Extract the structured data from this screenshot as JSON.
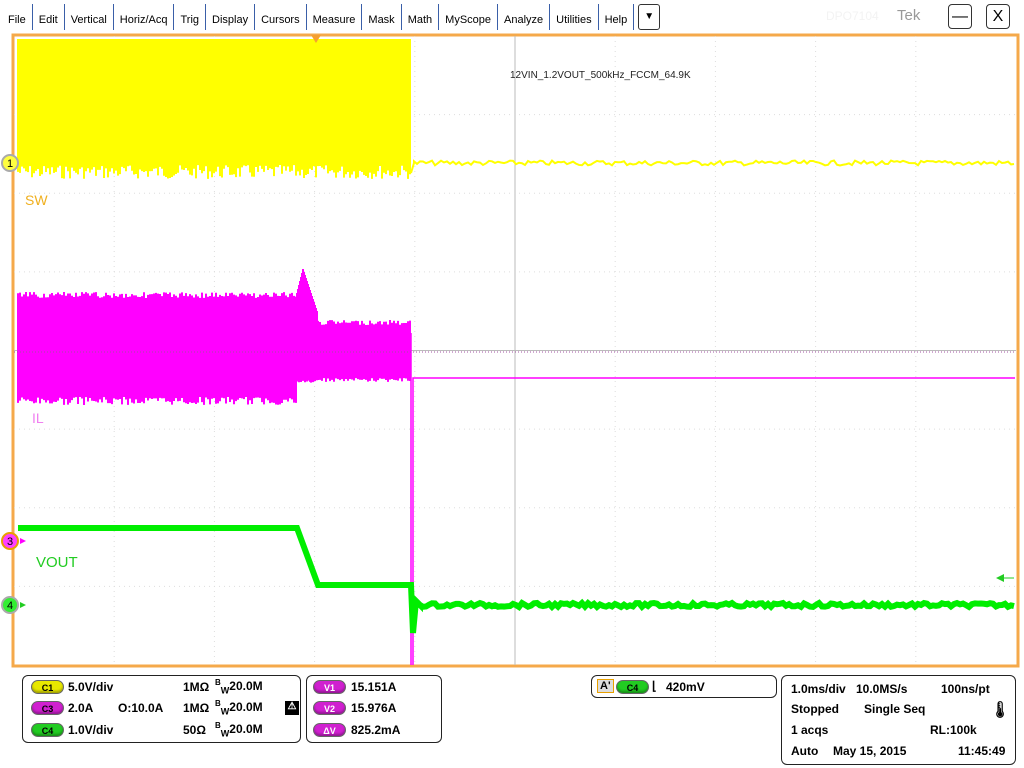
{
  "menu": [
    "File",
    "Edit",
    "Vertical",
    "Horiz/Acq",
    "Trig",
    "Display",
    "Cursors",
    "Measure",
    "Mask",
    "Math",
    "MyScope",
    "Analyze",
    "Utilities",
    "Help"
  ],
  "menu_more": "▼",
  "model": "DPO7104",
  "brand": "Tek",
  "window": {
    "minimize": "—",
    "close": "X"
  },
  "screen": {
    "annotation": "12VIN_1.2VOUT_500kHz_FCCM_64.9K",
    "labels": {
      "sw": "SW",
      "il": "IL",
      "vout": "VOUT"
    },
    "markers": {
      "c1": "1",
      "c3": "3",
      "c4": "4"
    },
    "colors": {
      "c1": "#ffff00",
      "c3": "#ff00ff",
      "c4": "#00ee00",
      "frame": "#f5a94a",
      "grid": "#cccccc"
    }
  },
  "channels": [
    {
      "id": "C1",
      "scale": "5.0V/div",
      "offset": "",
      "impedance": "1MΩ",
      "bw": "20.0M",
      "color": "#e8e800"
    },
    {
      "id": "C3",
      "scale": "2.0A",
      "offset": "O:10.0A",
      "impedance": "1MΩ",
      "bw": "20.0M",
      "color": "#d020d0"
    },
    {
      "id": "C4",
      "scale": "1.0V/div",
      "offset": "",
      "impedance": "50Ω",
      "bw": "20.0M",
      "color": "#22cc22"
    }
  ],
  "bw_prefix": "B",
  "bw_sub": "W",
  "cursors": [
    {
      "label": "V1",
      "value": "15.151A"
    },
    {
      "label": "V2",
      "value": "15.976A"
    },
    {
      "label": "ΔV",
      "value": "825.2mA"
    }
  ],
  "trigger": {
    "marker": "A'",
    "source": "C4",
    "slope": "falling",
    "level": "420mV"
  },
  "acq": {
    "timebase": "1.0ms/div",
    "sample_rate": "10.0MS/s",
    "resolution": "100ns/pt",
    "state": "Stopped",
    "mode": "Single Seq",
    "acqs": "1 acqs",
    "record_length": "RL:100k",
    "trigger_mode": "Auto",
    "date": "May 15, 2015",
    "time": "11:45:49"
  }
}
